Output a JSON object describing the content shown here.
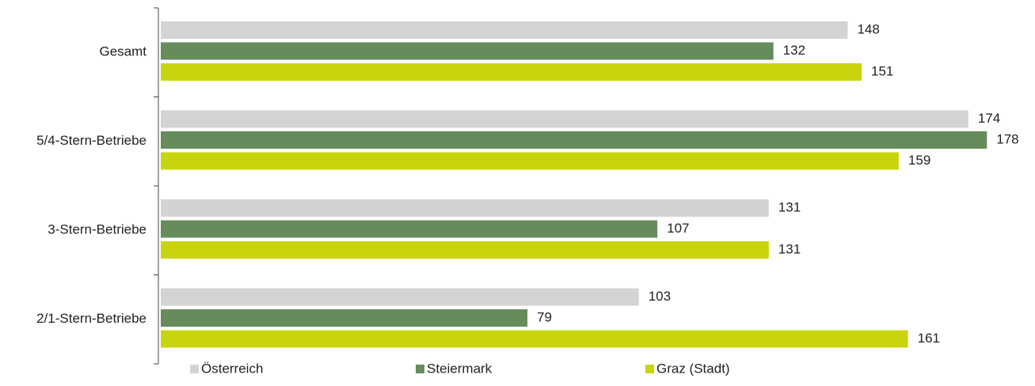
{
  "chart_data": {
    "type": "bar",
    "orientation": "horizontal",
    "categories": [
      "Gesamt",
      "5/4-Stern-Betriebe",
      "3-Stern-Betriebe",
      "2/1-Stern-Betriebe"
    ],
    "series": [
      {
        "name": "Österreich",
        "color": "#d3d3d3",
        "values": [
          148,
          174,
          131,
          103
        ]
      },
      {
        "name": "Steiermark",
        "color": "#668c5c",
        "values": [
          132,
          178,
          107,
          79
        ]
      },
      {
        "name": "Graz (Stadt)",
        "color": "#c8d50e",
        "values": [
          151,
          159,
          131,
          161
        ]
      }
    ],
    "xlim": [
      0,
      180
    ],
    "legend": "bottom"
  }
}
